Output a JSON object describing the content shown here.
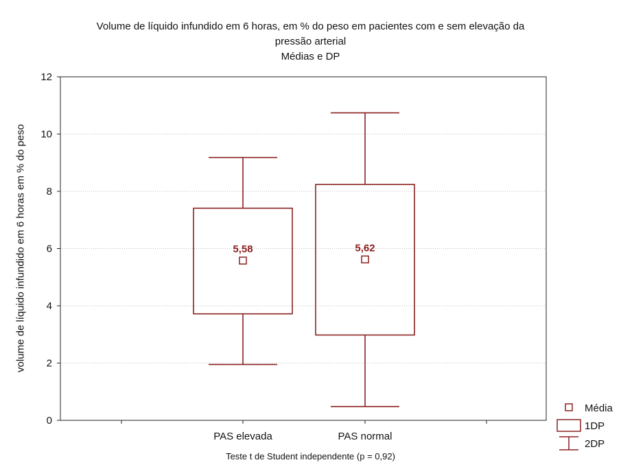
{
  "chart_data": {
    "type": "box",
    "title": "Volume de líquido infundido em 6 horas, em % do peso em pacientes com e sem elevação da",
    "title_line2": "pressão arterial",
    "subtitle": "Médias e DP",
    "ylabel": "volume de líquido infundido em 6 horas em % do peso",
    "footer": "Teste t de Student independente (p = 0,92)",
    "ylim": [
      0,
      12
    ],
    "yticks": [
      "0",
      "2",
      "4",
      "6",
      "8",
      "10",
      "12"
    ],
    "grid": true,
    "categories": [
      "PAS elevada",
      "PAS normal"
    ],
    "groups": [
      {
        "category": "PAS elevada",
        "mean": 5.58,
        "label": "5,58",
        "sd1_low": 3.72,
        "sd1_high": 7.41,
        "sd2_low": 1.95,
        "sd2_high": 9.18
      },
      {
        "category": "PAS normal",
        "mean": 5.62,
        "label": "5,62",
        "sd1_low": 2.98,
        "sd1_high": 8.24,
        "sd2_low": 0.48,
        "sd2_high": 10.74
      }
    ],
    "legend": {
      "position": "bottom-right",
      "entries": [
        "Média",
        "1DP",
        "2DP"
      ]
    },
    "colors": {
      "series": "#8b2020",
      "grid": "#bdbdbd",
      "axis": "#222222"
    }
  }
}
